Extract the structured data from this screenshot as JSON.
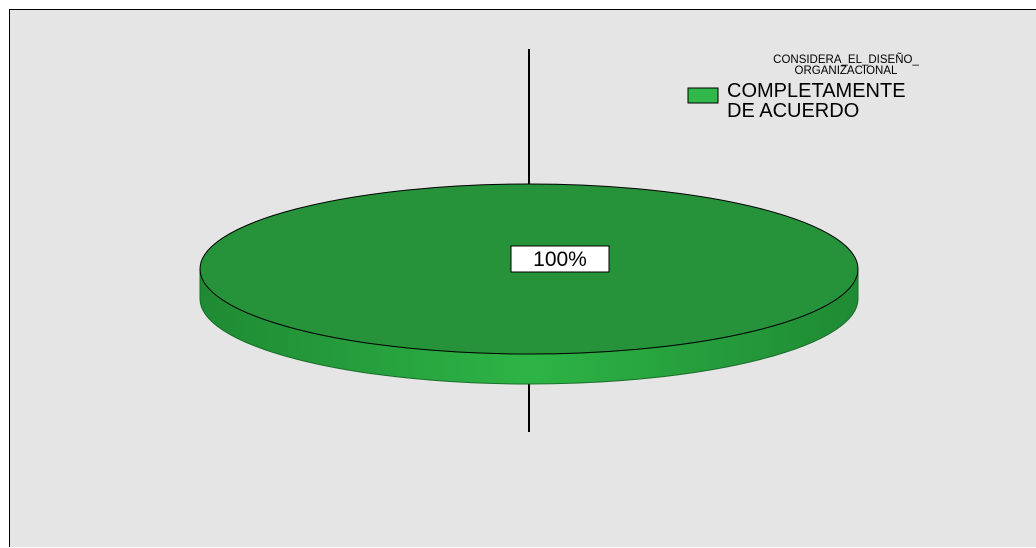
{
  "chart_data": {
    "type": "pie",
    "style": "3d",
    "legend": {
      "title_lines": [
        "CONSIDERA_EL_DISEÑO_",
        "ORGANIZACIONAL"
      ],
      "placement": "top-right"
    },
    "slices": [
      {
        "label_lines": [
          "COMPLETAMENTE",
          "DE ACUERDO"
        ],
        "value": 100,
        "percent_label": "100%",
        "color": "#26933a",
        "side_color": "#2db446",
        "swatch_color": "#30b84a"
      }
    ]
  }
}
